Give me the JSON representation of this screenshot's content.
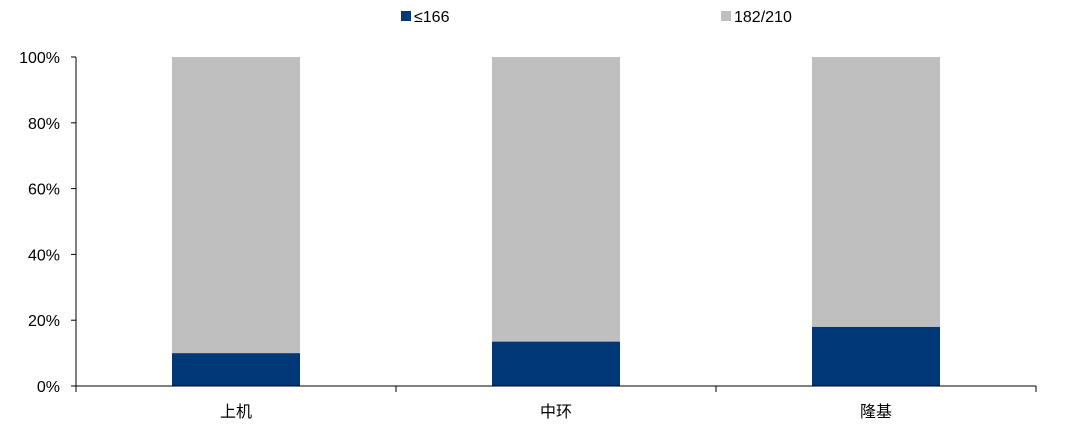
{
  "chart_data": {
    "type": "bar",
    "stacked": true,
    "categories": [
      "上机",
      "中环",
      "隆基"
    ],
    "series": [
      {
        "name": "≤166",
        "values": [
          10,
          13.5,
          18
        ],
        "color": "#003878"
      },
      {
        "name": "182/210",
        "values": [
          90,
          86.5,
          82
        ],
        "color": "#bfbfbf"
      }
    ],
    "ylim": [
      0,
      100
    ],
    "yticks": [
      "0%",
      "20%",
      "40%",
      "60%",
      "80%",
      "100%"
    ],
    "ytick_values": [
      0,
      20,
      40,
      60,
      80,
      100
    ],
    "grid": false,
    "legend_position": "top"
  }
}
